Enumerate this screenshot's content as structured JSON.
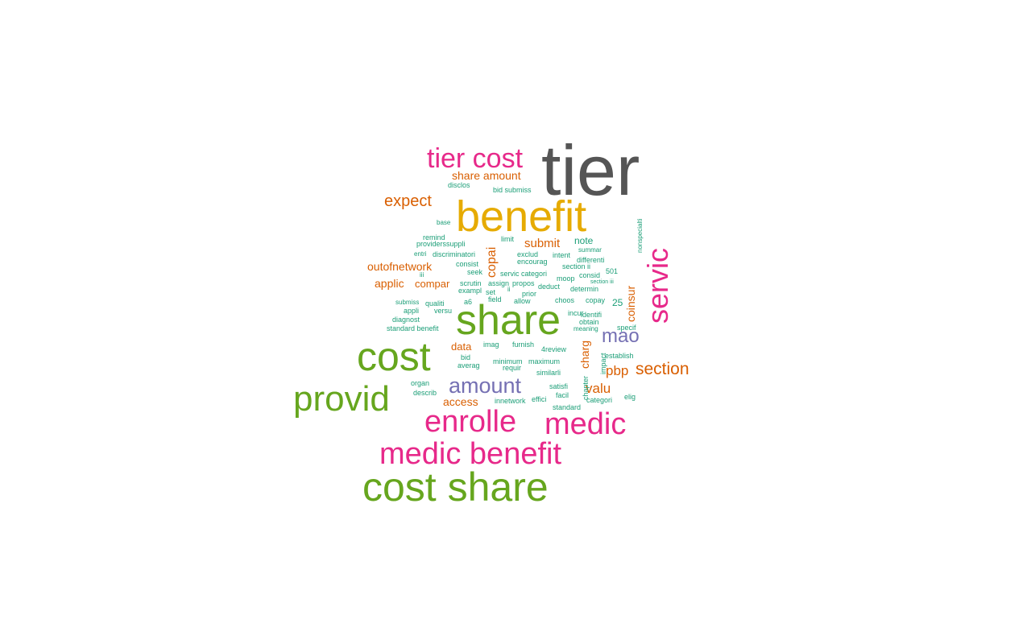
{
  "word_cloud": {
    "palette": {
      "gray": "#555555",
      "gold": "#E6AB02",
      "pink": "#E7298A",
      "green": "#66A61E",
      "purple": "#7570B3",
      "orange": "#D95F02",
      "teal": "#1B9E77"
    },
    "words": [
      {
        "text": "tier",
        "color": "#555555"
      },
      {
        "text": "benefit",
        "color": "#E6AB02"
      },
      {
        "text": "tier cost",
        "color": "#E7298A"
      },
      {
        "text": "share",
        "color": "#66A61E"
      },
      {
        "text": "cost",
        "color": "#66A61E"
      },
      {
        "text": "provid",
        "color": "#66A61E"
      },
      {
        "text": "cost share",
        "color": "#66A61E"
      },
      {
        "text": "medic benefit",
        "color": "#E7298A"
      },
      {
        "text": "enrolle",
        "color": "#E7298A"
      },
      {
        "text": "medic",
        "color": "#E7298A"
      },
      {
        "text": "servic",
        "color": "#E7298A"
      },
      {
        "text": "amount",
        "color": "#7570B3"
      },
      {
        "text": "mao",
        "color": "#7570B3"
      },
      {
        "text": "expect",
        "color": "#D95F02"
      },
      {
        "text": "section",
        "color": "#D95F02"
      },
      {
        "text": "pbp",
        "color": "#D95F02"
      },
      {
        "text": "valu",
        "color": "#D95F02"
      },
      {
        "text": "submit",
        "color": "#D95F02"
      },
      {
        "text": "copai",
        "color": "#D95F02"
      },
      {
        "text": "coinsur",
        "color": "#D95F02"
      },
      {
        "text": "charg",
        "color": "#D95F02"
      },
      {
        "text": "share amount",
        "color": "#D95F02"
      },
      {
        "text": "outofnetwork",
        "color": "#D95F02"
      },
      {
        "text": "applic",
        "color": "#D95F02"
      },
      {
        "text": "compar",
        "color": "#D95F02"
      },
      {
        "text": "data",
        "color": "#D95F02"
      },
      {
        "text": "access",
        "color": "#D95F02"
      },
      {
        "text": "note",
        "color": "#1B9E77"
      },
      {
        "text": "disclos",
        "color": "#1B9E77"
      },
      {
        "text": "bid submiss",
        "color": "#1B9E77"
      },
      {
        "text": "base",
        "color": "#1B9E77"
      },
      {
        "text": "remind",
        "color": "#1B9E77"
      },
      {
        "text": "providerssuppli",
        "color": "#1B9E77"
      },
      {
        "text": "entri",
        "color": "#1B9E77"
      },
      {
        "text": "discriminatori",
        "color": "#1B9E77"
      },
      {
        "text": "consist",
        "color": "#1B9E77"
      },
      {
        "text": "seek",
        "color": "#1B9E77"
      },
      {
        "text": "scrutin",
        "color": "#1B9E77"
      },
      {
        "text": "exampl",
        "color": "#1B9E77"
      },
      {
        "text": "qualiti",
        "color": "#1B9E77"
      },
      {
        "text": "submiss",
        "color": "#1B9E77"
      },
      {
        "text": "appli",
        "color": "#1B9E77"
      },
      {
        "text": "versu",
        "color": "#1B9E77"
      },
      {
        "text": "diagnost",
        "color": "#1B9E77"
      },
      {
        "text": "standard benefit",
        "color": "#1B9E77"
      },
      {
        "text": "limit",
        "color": "#1B9E77"
      },
      {
        "text": "exclud",
        "color": "#1B9E77"
      },
      {
        "text": "encourag",
        "color": "#1B9E77"
      },
      {
        "text": "intent",
        "color": "#1B9E77"
      },
      {
        "text": "summar",
        "color": "#1B9E77"
      },
      {
        "text": "differenti",
        "color": "#1B9E77"
      },
      {
        "text": "section ii",
        "color": "#1B9E77"
      },
      {
        "text": "501",
        "color": "#1B9E77"
      },
      {
        "text": "servic categori",
        "color": "#1B9E77"
      },
      {
        "text": "moop",
        "color": "#1B9E77"
      },
      {
        "text": "consid",
        "color": "#1B9E77"
      },
      {
        "text": "section iii",
        "color": "#1B9E77"
      },
      {
        "text": "assign",
        "color": "#1B9E77"
      },
      {
        "text": "propos",
        "color": "#1B9E77"
      },
      {
        "text": "deduct",
        "color": "#1B9E77"
      },
      {
        "text": "determin",
        "color": "#1B9E77"
      },
      {
        "text": "set",
        "color": "#1B9E77"
      },
      {
        "text": "prior",
        "color": "#1B9E77"
      },
      {
        "text": "field",
        "color": "#1B9E77"
      },
      {
        "text": "allow",
        "color": "#1B9E77"
      },
      {
        "text": "choos",
        "color": "#1B9E77"
      },
      {
        "text": "copay",
        "color": "#1B9E77"
      },
      {
        "text": "25",
        "color": "#1B9E77"
      },
      {
        "text": "a6",
        "color": "#1B9E77"
      },
      {
        "text": "incur",
        "color": "#1B9E77"
      },
      {
        "text": "identifi",
        "color": "#1B9E77"
      },
      {
        "text": "obtain",
        "color": "#1B9E77"
      },
      {
        "text": "meaning",
        "color": "#1B9E77"
      },
      {
        "text": "specif",
        "color": "#1B9E77"
      },
      {
        "text": "imag",
        "color": "#1B9E77"
      },
      {
        "text": "furnish",
        "color": "#1B9E77"
      },
      {
        "text": "4review",
        "color": "#1B9E77"
      },
      {
        "text": "establish",
        "color": "#1B9E77"
      },
      {
        "text": "bid",
        "color": "#1B9E77"
      },
      {
        "text": "minimum",
        "color": "#1B9E77"
      },
      {
        "text": "maximum",
        "color": "#1B9E77"
      },
      {
        "text": "averag",
        "color": "#1B9E77"
      },
      {
        "text": "requir",
        "color": "#1B9E77"
      },
      {
        "text": "similarli",
        "color": "#1B9E77"
      },
      {
        "text": "impact",
        "color": "#1B9E77"
      },
      {
        "text": "organ",
        "color": "#1B9E77"
      },
      {
        "text": "satisfi",
        "color": "#1B9E77"
      },
      {
        "text": "describ",
        "color": "#1B9E77"
      },
      {
        "text": "facil",
        "color": "#1B9E77"
      },
      {
        "text": "categori",
        "color": "#1B9E77"
      },
      {
        "text": "elig",
        "color": "#1B9E77"
      },
      {
        "text": "innetwork",
        "color": "#1B9E77"
      },
      {
        "text": "effici",
        "color": "#1B9E77"
      },
      {
        "text": "standard",
        "color": "#1B9E77"
      },
      {
        "text": "chapter",
        "color": "#1B9E77"
      },
      {
        "text": "nonspecialti",
        "color": "#1B9E77"
      },
      {
        "text": "iii",
        "color": "#1B9E77"
      },
      {
        "text": "ii",
        "color": "#1B9E77"
      }
    ]
  }
}
